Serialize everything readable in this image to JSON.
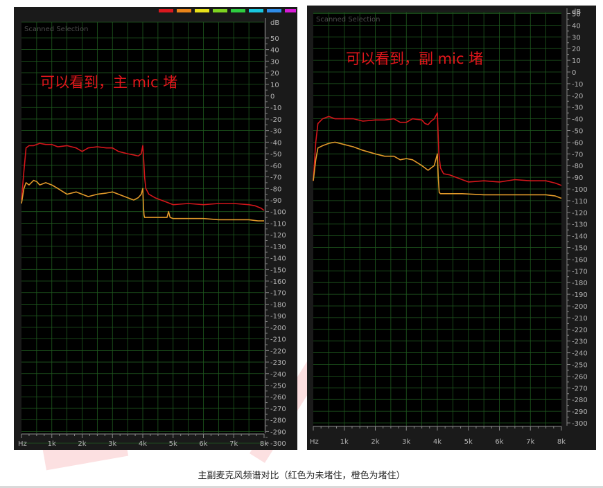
{
  "caption": "主副麦克风频谱对比（红色为未堵住，橙色为堵住）",
  "colors": {
    "red": "#d4161b",
    "orange": "#e39a2a",
    "grid": "#1f5a1f",
    "axis_text": "#b4b4b4",
    "background": "#000000",
    "panel": "#1a1a1a",
    "annotation": "#e0161b"
  },
  "palette": [
    "#d9181e",
    "#e8841a",
    "#e8e21a",
    "#7ed321",
    "#2ecc40",
    "#18c7e0",
    "#2f8ce8",
    "#d71ad6"
  ],
  "chart_data": [
    {
      "type": "line",
      "panel_label": "Scanned Selection",
      "annotation": "可以看到，主 mic 堵",
      "unit_label": "dB",
      "x_unit_label": "Hz",
      "x_ticks": [
        "1k",
        "2k",
        "3k",
        "4k",
        "5k",
        "6k",
        "7k",
        "8k"
      ],
      "y_ticks": [
        "50",
        "40",
        "30",
        "20",
        "10",
        "0",
        "-10",
        "-20",
        "-30",
        "-40",
        "-50",
        "-60",
        "-70",
        "-80",
        "-90",
        "-100",
        "-110",
        "-120",
        "-130",
        "-140",
        "-150",
        "-160",
        "-170",
        "-180",
        "-190",
        "-200",
        "-210",
        "-220",
        "-230",
        "-240",
        "-250",
        "-260",
        "-270",
        "-280",
        "-290",
        "-300"
      ],
      "xlim": [
        0,
        8000
      ],
      "ylim": [
        -300,
        50
      ],
      "series": [
        {
          "color": "red",
          "x": [
            0,
            80,
            150,
            250,
            400,
            600,
            800,
            1000,
            1200,
            1500,
            1800,
            2000,
            2200,
            2500,
            2800,
            3000,
            3200,
            3500,
            3700,
            3850,
            3950,
            4000,
            4030,
            4060,
            4100,
            4200,
            4400,
            4600,
            4800,
            5000,
            5500,
            6000,
            6500,
            7000,
            7500,
            7700,
            7900,
            8000
          ],
          "y": [
            -90,
            -65,
            -45,
            -43,
            -43,
            -41,
            -42,
            -42,
            -44,
            -43,
            -45,
            -48,
            -45,
            -44,
            -45,
            -45,
            -48,
            -50,
            -51,
            -52,
            -50,
            -43,
            -55,
            -70,
            -80,
            -85,
            -88,
            -90,
            -92,
            -94,
            -93,
            -94,
            -93,
            -93,
            -94,
            -95,
            -97,
            -99
          ]
        },
        {
          "color": "orange",
          "x": [
            0,
            80,
            150,
            250,
            400,
            500,
            600,
            800,
            1000,
            1200,
            1500,
            1800,
            2000,
            2200,
            2500,
            2800,
            3000,
            3200,
            3500,
            3700,
            3850,
            3950,
            4000,
            4020,
            4040,
            4060,
            4100,
            4300,
            4600,
            4800,
            4850,
            4900,
            5000,
            5500,
            6000,
            6500,
            7000,
            7500,
            7800,
            8000
          ],
          "y": [
            -93,
            -80,
            -75,
            -77,
            -73,
            -74,
            -77,
            -75,
            -77,
            -80,
            -85,
            -83,
            -85,
            -87,
            -85,
            -84,
            -83,
            -85,
            -88,
            -90,
            -88,
            -85,
            -80,
            -95,
            -103,
            -105,
            -105,
            -105,
            -105,
            -105,
            -100,
            -105,
            -106,
            -106,
            -106,
            -107,
            -107,
            -107,
            -108,
            -108
          ]
        }
      ]
    },
    {
      "type": "line",
      "panel_label": "Scanned Selection",
      "annotation": "可以看到，副 mic 堵",
      "unit_label": "dB",
      "x_unit_label": "Hz",
      "x_ticks": [
        "1k",
        "2k",
        "3k",
        "4k",
        "5k",
        "6k",
        "7k",
        "8k"
      ],
      "y_ticks": [
        "50",
        "40",
        "30",
        "20",
        "10",
        "0",
        "-10",
        "-20",
        "-30",
        "-40",
        "-50",
        "-60",
        "-70",
        "-80",
        "-90",
        "-100",
        "-110",
        "-120",
        "-130",
        "-140",
        "-150",
        "-160",
        "-170",
        "-180",
        "-190",
        "-200",
        "-210",
        "-220",
        "-230",
        "-240",
        "-250",
        "-260",
        "-270",
        "-280",
        "-290",
        "-300"
      ],
      "xlim": [
        0,
        8000
      ],
      "ylim": [
        -300,
        50
      ],
      "series": [
        {
          "color": "red",
          "x": [
            0,
            80,
            150,
            300,
            500,
            700,
            1000,
            1300,
            1600,
            2000,
            2300,
            2600,
            2800,
            3000,
            3200,
            3500,
            3600,
            3700,
            3800,
            3900,
            4000,
            4050,
            4100,
            4200,
            4400,
            4600,
            4800,
            5000,
            5500,
            6000,
            6500,
            7000,
            7500,
            7800,
            8000
          ],
          "y": [
            -93,
            -60,
            -44,
            -40,
            -38,
            -40,
            -40,
            -40,
            -42,
            -41,
            -41,
            -40,
            -43,
            -43,
            -40,
            -41,
            -44,
            -45,
            -42,
            -40,
            -35,
            -70,
            -82,
            -87,
            -88,
            -90,
            -92,
            -94,
            -93,
            -94,
            -92,
            -93,
            -93,
            -95,
            -97
          ]
        },
        {
          "color": "orange",
          "x": [
            0,
            80,
            150,
            300,
            500,
            700,
            1000,
            1300,
            1600,
            2000,
            2300,
            2600,
            2800,
            3000,
            3200,
            3500,
            3600,
            3700,
            3800,
            3900,
            4000,
            4030,
            4060,
            4100,
            4400,
            4800,
            5500,
            6000,
            6500,
            7000,
            7500,
            7800,
            8000
          ],
          "y": [
            -93,
            -75,
            -65,
            -63,
            -61,
            -60,
            -62,
            -64,
            -67,
            -70,
            -72,
            -72,
            -75,
            -74,
            -75,
            -80,
            -82,
            -84,
            -82,
            -80,
            -70,
            -90,
            -103,
            -104,
            -104,
            -104,
            -105,
            -105,
            -105,
            -105,
            -105,
            -106,
            -108
          ]
        }
      ]
    }
  ]
}
